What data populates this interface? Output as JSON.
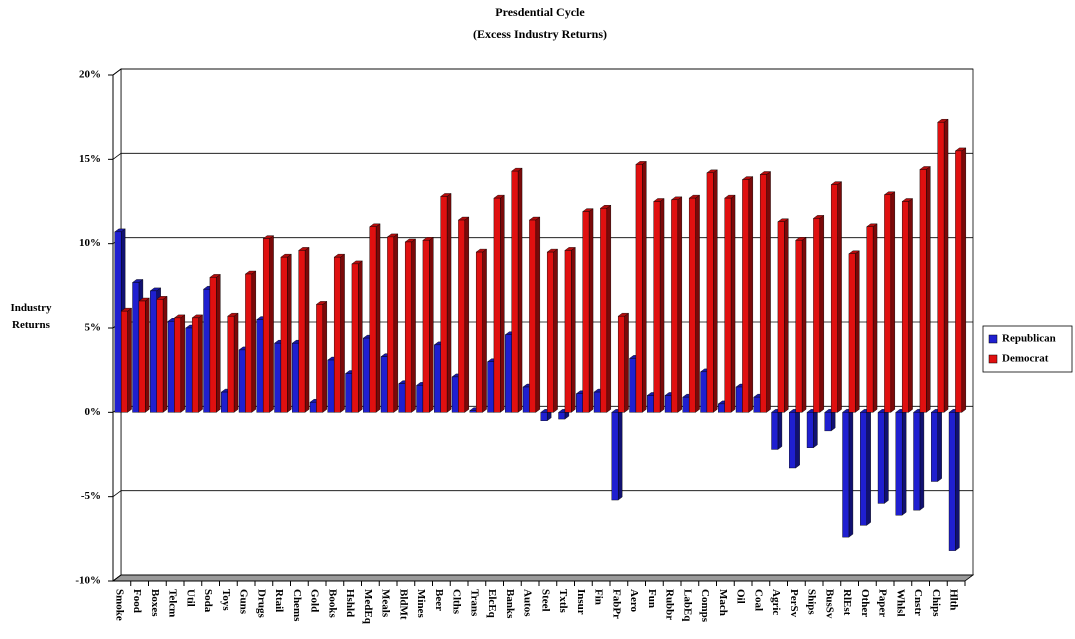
{
  "chart_data": {
    "type": "bar3d",
    "title": "Presdential Cycle",
    "subtitle": "(Excess Industry Returns)",
    "y_label": "Industry Returns",
    "categories": [
      "Smoke",
      "Food",
      "Boxes",
      "Telcm",
      "Util",
      "Soda",
      "Toys",
      "Guns",
      "Drugs",
      "Rtail",
      "Chems",
      "Gold",
      "Books",
      "Hshld",
      "MedEq",
      "Meals",
      "BldMt",
      "Mines",
      "Beer",
      "Clths",
      "Trans",
      "ElcEq",
      "Banks",
      "Autos",
      "Steel",
      "Txtls",
      "Insur",
      "Fin",
      "FabPr",
      "Aero",
      "Fun",
      "Rubbr",
      "LabEq",
      "Comps",
      "Mach",
      "Oil",
      "Coal",
      "Agric",
      "PerSv",
      "Ships",
      "BusSv",
      "RlEst",
      "Other",
      "Paper",
      "Whlsl",
      "Cnstr",
      "Chips",
      "Hlth"
    ],
    "series": [
      {
        "name": "Republican",
        "color": "#1f1fd0",
        "values": [
          10.7,
          7.7,
          7.2,
          5.4,
          5.0,
          7.3,
          1.2,
          3.7,
          5.5,
          4.1,
          4.1,
          0.6,
          3.1,
          2.3,
          4.4,
          3.3,
          1.7,
          1.6,
          4.0,
          2.1,
          0.1,
          3.0,
          4.6,
          1.5,
          -0.5,
          -0.4,
          1.1,
          1.2,
          -5.2,
          3.2,
          1.0,
          1.0,
          0.9,
          2.4,
          0.5,
          1.5,
          0.9,
          -2.2,
          -3.3,
          -2.1,
          -1.1,
          -7.4,
          -6.7,
          -5.4,
          -6.1,
          -5.8,
          -4.1,
          -8.2
        ]
      },
      {
        "name": "Democrat",
        "color": "#e01010",
        "values": [
          6.0,
          6.6,
          6.7,
          5.6,
          5.6,
          8.0,
          5.7,
          8.2,
          10.3,
          9.2,
          9.6,
          6.4,
          9.2,
          8.8,
          11.0,
          10.4,
          10.1,
          10.2,
          12.8,
          11.4,
          9.5,
          12.7,
          14.3,
          11.4,
          9.5,
          9.6,
          11.9,
          12.1,
          5.7,
          14.7,
          12.5,
          12.6,
          12.7,
          14.2,
          12.7,
          13.8,
          14.1,
          11.3,
          10.2,
          11.5,
          13.5,
          9.4,
          11.0,
          12.9,
          12.5,
          14.4,
          17.2,
          15.5
        ]
      }
    ],
    "ylim": [
      -10,
      20
    ],
    "yticks": [
      {
        "value": -10,
        "label": "-10%"
      },
      {
        "value": -5,
        "label": "-5%"
      },
      {
        "value": 0,
        "label": "0%"
      },
      {
        "value": 5,
        "label": "5%"
      },
      {
        "value": 10,
        "label": "10%"
      },
      {
        "value": 15,
        "label": "15%"
      },
      {
        "value": 20,
        "label": "20%"
      }
    ],
    "grid": true,
    "legend": "right"
  }
}
